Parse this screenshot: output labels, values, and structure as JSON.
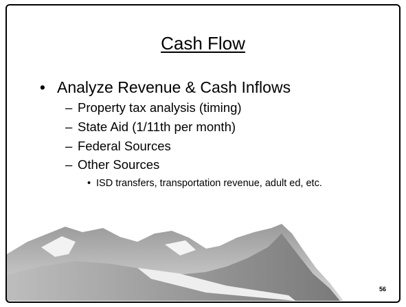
{
  "title": "Cash Flow",
  "bullets": [
    {
      "text": "Analyze Revenue & Cash Inflows",
      "items": [
        {
          "text": "Property tax analysis (timing)"
        },
        {
          "text": "State Aid  (1/11th per month)"
        },
        {
          "text": "Federal Sources"
        },
        {
          "text": "Other Sources",
          "items": [
            "ISD transfers, transportation revenue, adult ed, etc."
          ]
        }
      ]
    }
  ],
  "page_number": 56
}
